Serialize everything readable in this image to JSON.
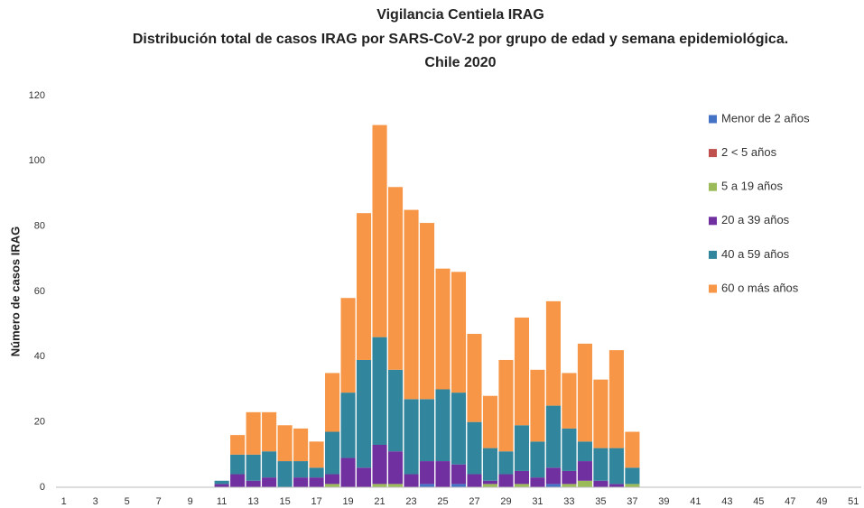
{
  "chart_data": {
    "type": "stacked-bar",
    "title": "Vigilancia Centiela IRAG",
    "subtitle": "Distribución total  de casos IRAG  por SARS-CoV-2 por grupo de edad y semana epidemiológica.",
    "subtitle2": "Chile 2020",
    "y_label": "Número de casos IRAG",
    "categories": [
      1,
      null,
      3,
      null,
      5,
      null,
      7,
      null,
      9,
      null,
      11,
      null,
      13,
      null,
      15,
      null,
      17,
      null,
      19,
      null,
      21,
      null,
      23,
      null,
      25,
      null,
      27,
      null,
      29,
      null,
      31,
      null,
      33,
      null,
      35,
      null,
      37,
      null,
      39,
      null,
      41,
      null,
      43,
      null,
      45,
      null,
      47,
      null,
      49,
      null,
      51
    ],
    "ylim": [
      0,
      120
    ],
    "yticks": [
      0,
      20,
      40,
      60,
      80,
      100,
      120
    ],
    "grid": false,
    "legend": "right",
    "series": [
      {
        "name": "Menor de 2 años",
        "color": "#4472c4",
        "values": [
          0,
          0,
          0,
          0,
          0,
          0,
          0,
          0,
          0,
          0,
          0,
          0,
          0,
          0,
          0,
          0,
          0,
          0,
          0,
          0,
          0,
          0,
          0,
          1,
          0,
          1,
          0,
          0,
          0,
          0,
          0,
          1,
          0,
          0,
          0,
          0,
          0,
          0,
          0,
          0,
          0,
          0,
          0,
          0,
          0,
          0,
          0,
          0,
          0,
          0,
          0
        ]
      },
      {
        "name": "2 < 5 años",
        "color": "#c0504d",
        "values": [
          0,
          0,
          0,
          0,
          0,
          0,
          0,
          0,
          0,
          0,
          0,
          0,
          0,
          0,
          0,
          0,
          0,
          0,
          0,
          0,
          0,
          0,
          0,
          0,
          0,
          0,
          0,
          0,
          0,
          0,
          0,
          0,
          0,
          0,
          0,
          0,
          0,
          0,
          0,
          0,
          0,
          0,
          0,
          0,
          0,
          0,
          0,
          0,
          0,
          0,
          0
        ]
      },
      {
        "name": "5 a 19 años",
        "color": "#9bbb59",
        "values": [
          0,
          0,
          0,
          0,
          0,
          0,
          0,
          0,
          0,
          0,
          0,
          0,
          0,
          0,
          0,
          0,
          0,
          1,
          0,
          0,
          1,
          1,
          0,
          0,
          0,
          0,
          0,
          1,
          0,
          1,
          0,
          0,
          1,
          2,
          0,
          0,
          1,
          0,
          0,
          0,
          0,
          0,
          0,
          0,
          0,
          0,
          0,
          0,
          0,
          0,
          0
        ]
      },
      {
        "name": "20 a 39 años",
        "color": "#7030a0",
        "values": [
          0,
          0,
          0,
          0,
          0,
          0,
          0,
          0,
          0,
          0,
          1,
          4,
          2,
          3,
          0,
          3,
          3,
          3,
          9,
          6,
          12,
          10,
          4,
          7,
          8,
          6,
          4,
          1,
          4,
          4,
          3,
          5,
          4,
          6,
          2,
          1,
          0,
          0,
          0,
          0,
          0,
          0,
          0,
          0,
          0,
          0,
          0,
          0,
          0,
          0,
          0
        ]
      },
      {
        "name": "40 a 59 años",
        "color": "#31859c",
        "values": [
          0,
          0,
          0,
          0,
          0,
          0,
          0,
          0,
          0,
          0,
          1,
          6,
          8,
          8,
          8,
          5,
          3,
          13,
          20,
          33,
          33,
          25,
          23,
          19,
          22,
          22,
          16,
          10,
          7,
          14,
          11,
          19,
          13,
          6,
          10,
          11,
          5,
          0,
          0,
          0,
          0,
          0,
          0,
          0,
          0,
          0,
          0,
          0,
          0,
          0,
          0
        ]
      },
      {
        "name": "60 o más años",
        "color": "#f79646",
        "values": [
          0,
          0,
          0,
          0,
          0,
          0,
          0,
          0,
          0,
          0,
          0,
          6,
          13,
          12,
          11,
          10,
          8,
          18,
          29,
          45,
          65,
          56,
          58,
          54,
          37,
          37,
          27,
          16,
          28,
          33,
          22,
          32,
          17,
          30,
          21,
          30,
          11,
          0,
          0,
          0,
          0,
          0,
          0,
          0,
          0,
          0,
          0,
          0,
          0,
          0,
          0
        ]
      }
    ]
  }
}
